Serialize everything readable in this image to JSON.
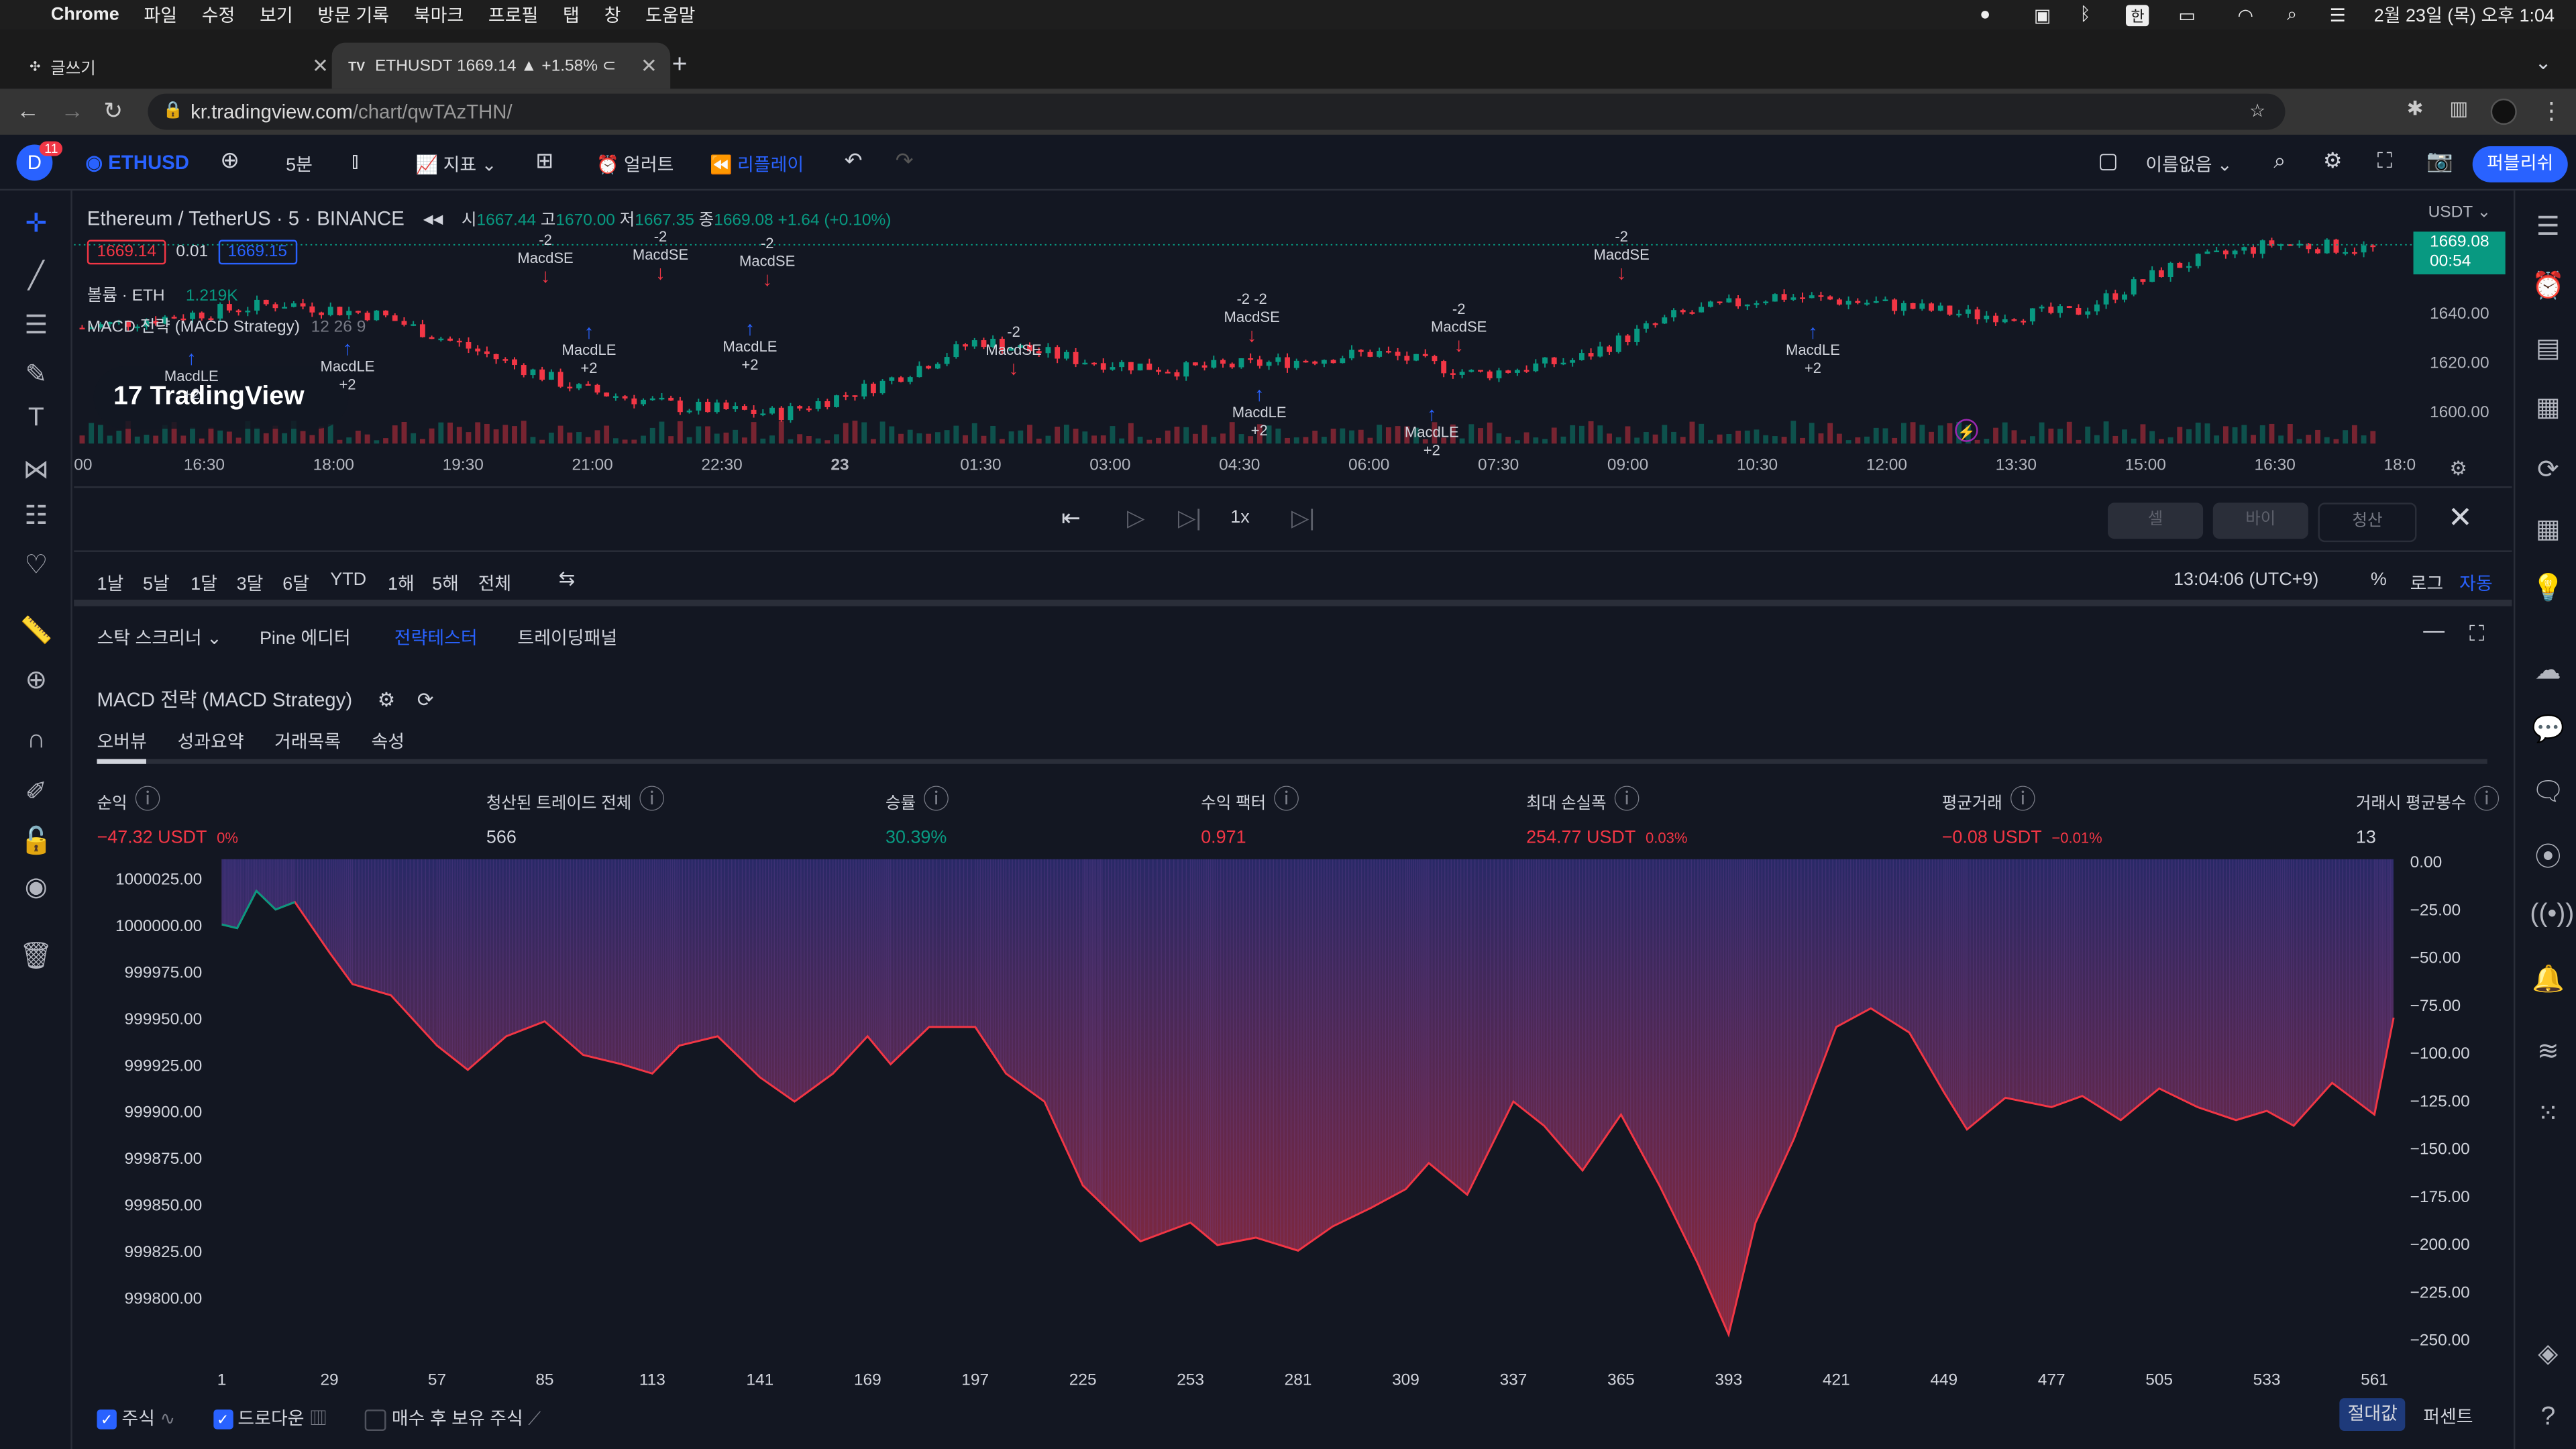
{
  "macos_menubar": {
    "app": "Chrome",
    "menus": [
      "파일",
      "수정",
      "보기",
      "방문 기록",
      "북마크",
      "프로필",
      "탭",
      "창",
      "도움말"
    ],
    "ime": "한",
    "clock": "2월 23일 (목) 오후 1:04"
  },
  "browser": {
    "tabs": [
      {
        "title": "글쓰기"
      },
      {
        "title": "ETHUSDT 1669.14 ▲ +1.58% ⊂"
      }
    ],
    "url_host": "kr.tradingview.com",
    "url_path": "/chart/qwTAzTHN/"
  },
  "tv_toolbar": {
    "avatar_letter": "D",
    "avatar_badge": "11",
    "symbol": "ETHUSD",
    "interval": "5분",
    "indicators": "지표",
    "alert": "얼러트",
    "replay": "리플레이",
    "layout_name": "이름없음",
    "publish": "퍼블리쉬"
  },
  "chart": {
    "title": "Ethereum / TetherUS · 5 · BINANCE",
    "ohlc": {
      "o_label": "시",
      "o": "1667.44",
      "h_label": "고",
      "h": "1670.00",
      "l_label": "저",
      "l": "1667.35",
      "c_label": "종",
      "c": "1669.08",
      "change": "+1.64 (+0.10%)"
    },
    "sell_price": "1669.14",
    "spread": "0.01",
    "buy_price": "1669.15",
    "volume_label": "볼륨 · ETH",
    "volume_value": "1.219K",
    "strategy_label": "MACD 전략 (MACD Strategy)",
    "strategy_params": "12 26 9",
    "logo": "TradingView",
    "currency": "USDT",
    "last_price": "1669.08",
    "countdown": "00:54",
    "price_ticks": [
      "1640.00",
      "1620.00",
      "1600.00"
    ],
    "time_ticks": [
      "00",
      "16:30",
      "18:00",
      "19:30",
      "21:00",
      "22:30",
      "23",
      "01:30",
      "03:00",
      "04:30",
      "06:00",
      "07:30",
      "09:00",
      "10:30",
      "12:00",
      "13:30",
      "15:00",
      "16:30",
      "18:0"
    ],
    "signals": [
      {
        "text": "-2\nMacdSE",
        "dir": "down"
      },
      {
        "text": "-2\nMacdSE",
        "dir": "down"
      },
      {
        "text": "-2\nMacdSE",
        "dir": "down"
      },
      {
        "text": "MacdLE\n+2",
        "dir": "up"
      },
      {
        "text": "MacdLE\n+2",
        "dir": "up"
      },
      {
        "text": "MacdLE\n+2",
        "dir": "up"
      },
      {
        "text": "-2\nMacdSE",
        "dir": "down"
      },
      {
        "text": "-2 -2\nMacdSE",
        "dir": "down"
      },
      {
        "text": "MacdLE\n+2",
        "dir": "up"
      },
      {
        "text": "-2\nMacdSE",
        "dir": "down"
      },
      {
        "text": "MacdLE\n+2",
        "dir": "up"
      },
      {
        "text": "-2\nMacdSE",
        "dir": "down"
      },
      {
        "text": "MacdLE\n+2",
        "dir": "up"
      },
      {
        "text": "MacdLE\n+2",
        "dir": "up"
      }
    ]
  },
  "replay_bar": {
    "speed": "1x",
    "sell": "셀",
    "buy": "바이",
    "flatten": "청산"
  },
  "range_bar": {
    "ranges": [
      "1날",
      "5날",
      "1달",
      "3달",
      "6달",
      "YTD",
      "1해",
      "5해",
      "전체"
    ],
    "clock": "13:04:06 (UTC+9)",
    "percent": "%",
    "log": "로그",
    "auto": "자동"
  },
  "bottom_tabs": [
    "스탁 스크리너",
    "Pine 에디터",
    "전략테스터",
    "트레이딩패널"
  ],
  "strategy_tester": {
    "name": "MACD 전략 (MACD Strategy)",
    "subtabs": [
      "오버뷰",
      "성과요약",
      "거래목록",
      "속성"
    ],
    "metrics": [
      {
        "label": "순익",
        "value": "−47.32 USDT",
        "sub": "0%",
        "color": "red"
      },
      {
        "label": "청산된 트레이드 전체",
        "value": "566",
        "sub": "",
        "color": "white"
      },
      {
        "label": "승률",
        "value": "30.39%",
        "sub": "",
        "color": "green"
      },
      {
        "label": "수익 팩터",
        "value": "0.971",
        "sub": "",
        "color": "red"
      },
      {
        "label": "최대 손실폭",
        "value": "254.77 USDT",
        "sub": "0.03%",
        "color": "red"
      },
      {
        "label": "평균거래",
        "value": "−0.08 USDT",
        "sub": "−0.01%",
        "color": "red"
      },
      {
        "label": "거래시 평균봉수",
        "value": "13",
        "sub": "",
        "color": "white"
      }
    ],
    "legend": {
      "equity": "주식",
      "drawdown": "드로다운",
      "buy_hold": "매수 후 보유 주식"
    },
    "scale_abs": "절대값",
    "scale_pct": "퍼센트"
  },
  "chart_data": [
    {
      "type": "area",
      "title": "",
      "x_ticks": [
        1,
        29,
        57,
        85,
        113,
        141,
        169,
        197,
        225,
        253,
        281,
        309,
        337,
        365,
        393,
        421,
        449,
        477,
        505,
        533,
        561
      ],
      "left_axis_ticks": [
        "1000025.00",
        "1000000.00",
        "999975.00",
        "999950.00",
        "999925.00",
        "999900.00",
        "999875.00",
        "999850.00",
        "999825.00",
        "999800.00"
      ],
      "right_axis_ticks": [
        "0.00",
        "−25.00",
        "−50.00",
        "−75.00",
        "−100.00",
        "−125.00",
        "−150.00",
        "−175.00",
        "−200.00",
        "−225.00",
        "−250.00"
      ],
      "ylim_left": [
        999775,
        1000035
      ],
      "series": [
        {
          "name": "주식",
          "color": "#f23645",
          "x": [
            1,
            5,
            10,
            15,
            20,
            29,
            35,
            45,
            57,
            65,
            75,
            85,
            95,
            105,
            113,
            120,
            130,
            141,
            150,
            160,
            169,
            175,
            185,
            197,
            205,
            215,
            225,
            230,
            240,
            253,
            260,
            270,
            281,
            290,
            300,
            309,
            315,
            325,
            337,
            345,
            355,
            365,
            375,
            385,
            393,
            400,
            410,
            421,
            430,
            440,
            449,
            455,
            465,
            477,
            485,
            495,
            505,
            515,
            525,
            533,
            540,
            550,
            561,
            566
          ],
          "values": [
            1000000,
            999998,
            1000018,
            1000008,
            1000012,
            999985,
            999968,
            999962,
            999935,
            999922,
            999940,
            999948,
            999930,
            999925,
            999920,
            999935,
            999940,
            999918,
            999905,
            999920,
            999940,
            999925,
            999945,
            999945,
            999920,
            999905,
            999860,
            999850,
            999830,
            999840,
            999828,
            999832,
            999825,
            999838,
            999848,
            999858,
            999872,
            999855,
            999905,
            999892,
            999868,
            999898,
            999860,
            999818,
            999780,
            999840,
            999885,
            999945,
            999955,
            999942,
            999910,
            999890,
            999907,
            999902,
            999908,
            999895,
            999912,
            999902,
            999895,
            999900,
            999892,
            999915,
            999898,
            999950
          ]
        },
        {
          "name": "드로다운",
          "color": "#7e57c2",
          "values_note": "",
          "x": [
            1,
            57,
            113,
            197,
            225,
            281,
            337,
            393,
            421,
            449,
            505,
            561
          ],
          "values": [
            0,
            -30,
            -85,
            -85,
            -170,
            -210,
            -120,
            -250,
            -70,
            -120,
            -110,
            -110
          ]
        }
      ]
    },
    {
      "type": "bar",
      "title": "",
      "categories": [],
      "values": [],
      "xlabel": "",
      "ylabel": ""
    }
  ]
}
